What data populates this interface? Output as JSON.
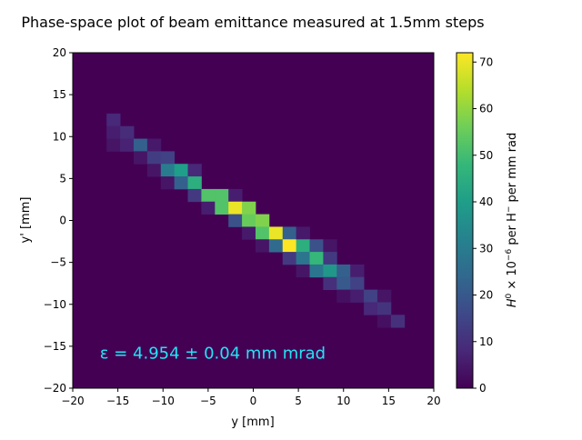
{
  "chart_data": {
    "type": "heatmap",
    "title": "Phase-space plot of beam emittance measured at 1.5mm steps",
    "xlabel": "y [mm]",
    "ylabel": "y' [mm]",
    "xlim": [
      -20,
      20
    ],
    "ylim": [
      -20,
      20
    ],
    "xticks": [
      -20,
      -15,
      -10,
      -5,
      0,
      5,
      10,
      15,
      20
    ],
    "yticks": [
      -20,
      -15,
      -10,
      -5,
      0,
      5,
      10,
      15,
      20
    ],
    "bin_size": 1.5,
    "colormap": "viridis",
    "background_color": "#440154",
    "colorbar": {
      "label": "H^0 × 10^-6 per H^- per mm rad",
      "label_main": "H",
      "label_sup1": "0",
      "label_mid": " × 10",
      "label_sup2": "−6",
      "label_mid2": " per H",
      "label_sup3": "−",
      "label_end": " per mm rad",
      "min": 0,
      "max": 72,
      "ticks": [
        0,
        10,
        20,
        30,
        40,
        50,
        60,
        70
      ]
    },
    "annotation": {
      "text": "ε = 4.954 ± 0.04 mm mrad",
      "x": -17,
      "y": -16.5,
      "color": "#22e5f5"
    },
    "cells": [
      {
        "x": -15.5,
        "y": 12.0,
        "v": 8
      },
      {
        "x": -15.5,
        "y": 10.5,
        "v": 6
      },
      {
        "x": -15.5,
        "y": 9.0,
        "v": 4
      },
      {
        "x": -14.0,
        "y": 10.5,
        "v": 9
      },
      {
        "x": -14.0,
        "y": 9.0,
        "v": 7
      },
      {
        "x": -12.5,
        "y": 9.0,
        "v": 22
      },
      {
        "x": -12.5,
        "y": 7.5,
        "v": 4
      },
      {
        "x": -11.0,
        "y": 9.0,
        "v": 5
      },
      {
        "x": -11.0,
        "y": 7.5,
        "v": 13
      },
      {
        "x": -11.0,
        "y": 6.0,
        "v": 4
      },
      {
        "x": -9.5,
        "y": 7.5,
        "v": 14
      },
      {
        "x": -9.5,
        "y": 6.0,
        "v": 30
      },
      {
        "x": -9.5,
        "y": 4.5,
        "v": 4
      },
      {
        "x": -8.0,
        "y": 6.0,
        "v": 40
      },
      {
        "x": -8.0,
        "y": 4.5,
        "v": 22
      },
      {
        "x": -6.5,
        "y": 6.0,
        "v": 8
      },
      {
        "x": -6.5,
        "y": 4.5,
        "v": 45
      },
      {
        "x": -6.5,
        "y": 3.0,
        "v": 12
      },
      {
        "x": -5.0,
        "y": 3.0,
        "v": 52
      },
      {
        "x": -5.0,
        "y": 1.5,
        "v": 6
      },
      {
        "x": -3.5,
        "y": 3.0,
        "v": 52
      },
      {
        "x": -3.5,
        "y": 1.5,
        "v": 52
      },
      {
        "x": -2.0,
        "y": 3.0,
        "v": 6
      },
      {
        "x": -2.0,
        "y": 1.5,
        "v": 70
      },
      {
        "x": -2.0,
        "y": 0.0,
        "v": 18
      },
      {
        "x": -0.5,
        "y": 1.5,
        "v": 58
      },
      {
        "x": -0.5,
        "y": 0.0,
        "v": 55
      },
      {
        "x": -0.5,
        "y": -1.5,
        "v": 5
      },
      {
        "x": 1.0,
        "y": 0.0,
        "v": 58
      },
      {
        "x": 1.0,
        "y": -1.5,
        "v": 52
      },
      {
        "x": 1.0,
        "y": -3.0,
        "v": 4
      },
      {
        "x": 2.5,
        "y": -1.5,
        "v": 70
      },
      {
        "x": 2.5,
        "y": -3.0,
        "v": 25
      },
      {
        "x": 4.0,
        "y": -1.5,
        "v": 22
      },
      {
        "x": 4.0,
        "y": -3.0,
        "v": 72
      },
      {
        "x": 4.0,
        "y": -4.5,
        "v": 12
      },
      {
        "x": 5.5,
        "y": -1.5,
        "v": 5
      },
      {
        "x": 5.5,
        "y": -3.0,
        "v": 45
      },
      {
        "x": 5.5,
        "y": -4.5,
        "v": 28
      },
      {
        "x": 5.5,
        "y": -6.0,
        "v": 4
      },
      {
        "x": 7.0,
        "y": -3.0,
        "v": 18
      },
      {
        "x": 7.0,
        "y": -4.5,
        "v": 48
      },
      {
        "x": 7.0,
        "y": -6.0,
        "v": 28
      },
      {
        "x": 8.5,
        "y": -3.0,
        "v": 4
      },
      {
        "x": 8.5,
        "y": -4.5,
        "v": 12
      },
      {
        "x": 8.5,
        "y": -6.0,
        "v": 38
      },
      {
        "x": 8.5,
        "y": -7.5,
        "v": 10
      },
      {
        "x": 10.0,
        "y": -6.0,
        "v": 22
      },
      {
        "x": 10.0,
        "y": -7.5,
        "v": 20
      },
      {
        "x": 10.0,
        "y": -9.0,
        "v": 3
      },
      {
        "x": 11.5,
        "y": -6.0,
        "v": 6
      },
      {
        "x": 11.5,
        "y": -7.5,
        "v": 14
      },
      {
        "x": 11.5,
        "y": -9.0,
        "v": 6
      },
      {
        "x": 13.0,
        "y": -9.0,
        "v": 14
      },
      {
        "x": 13.0,
        "y": -10.5,
        "v": 8
      },
      {
        "x": 14.5,
        "y": -9.0,
        "v": 4
      },
      {
        "x": 14.5,
        "y": -10.5,
        "v": 11
      },
      {
        "x": 14.5,
        "y": -12.0,
        "v": 3
      },
      {
        "x": 16.0,
        "y": -12.0,
        "v": 10
      }
    ]
  }
}
